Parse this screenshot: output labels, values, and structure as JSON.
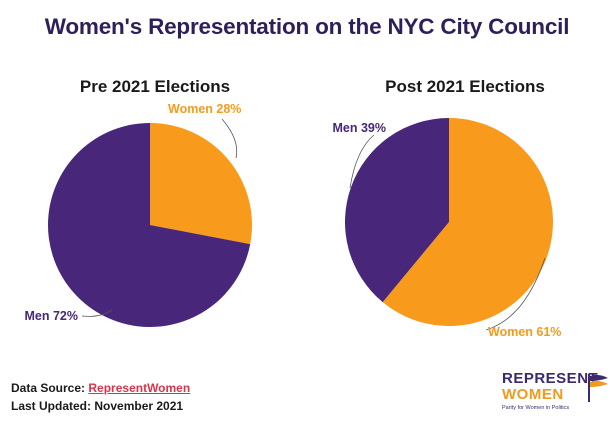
{
  "page": {
    "title": "Women's Representation on the NYC City Council"
  },
  "chart_data": [
    {
      "type": "pie",
      "title": "Pre 2021 Elections",
      "slices": [
        {
          "label": "Women",
          "value": 28,
          "display": "Women 28%",
          "color": "#f89a1c"
        },
        {
          "label": "Men",
          "value": 72,
          "display": "Men 72%",
          "color": "#48277a"
        }
      ]
    },
    {
      "type": "pie",
      "title": "Post 2021 Elections",
      "slices": [
        {
          "label": "Women",
          "value": 61,
          "display": "Women 61%",
          "color": "#f89a1c"
        },
        {
          "label": "Men",
          "value": 39,
          "display": "Men 39%",
          "color": "#48277a"
        }
      ]
    }
  ],
  "footer": {
    "source_label": "Data Source:",
    "source_name": "RepresentWomen",
    "updated_label": "Last Updated:",
    "updated_value": "November 2021"
  },
  "logo": {
    "line1": "REPRESENT",
    "line2": "WOMEN",
    "tagline": "Parity for Women in Politics"
  },
  "colors": {
    "title": "#2e1f5a",
    "women": "#f89a1c",
    "men": "#48277a",
    "link": "#d7354c"
  }
}
